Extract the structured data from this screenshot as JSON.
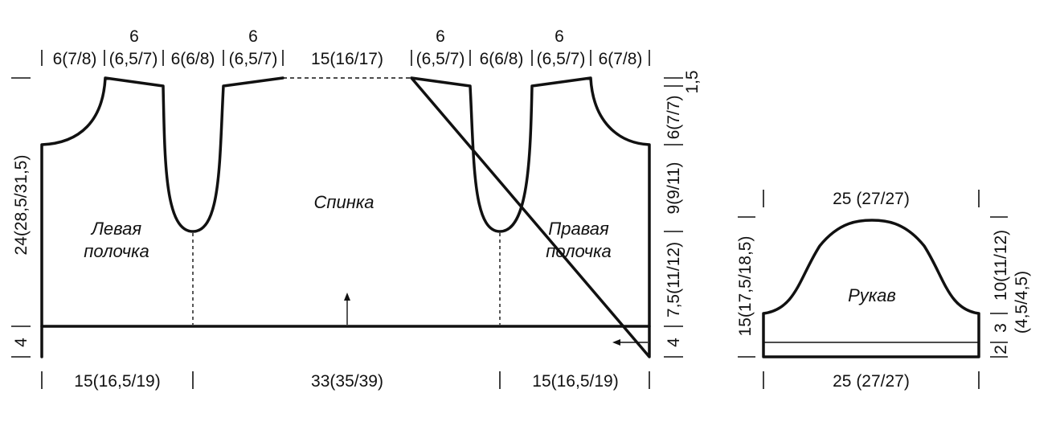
{
  "pieces": {
    "left_front": "Левая\nполочка",
    "back": "Спинка",
    "right_front": "Правая\nполочка",
    "sleeve": "Рукав"
  },
  "top_measures": {
    "left_neck_width": "6",
    "left_shoulder_width": "6",
    "right_neck_width": "6",
    "right_shoulder_width": "6",
    "seg1": "6(7/8)",
    "seg2": "(6,5/7)",
    "seg3": "6(6/8)",
    "seg4": "(6,5/7)",
    "seg5": "15(16/17)",
    "seg6": "(6,5/7)",
    "seg7": "6(6/8)",
    "seg8": "(6,5/7)",
    "seg9": "6(7/8)"
  },
  "bottom_measures": {
    "left": "15(16,5/19)",
    "center": "33(35/39)",
    "right": "15(16,5/19)"
  },
  "left_side": {
    "body_height": "24(28,5/31,5)",
    "band": "4"
  },
  "right_side": {
    "shoulder_slope": "1,5",
    "armhole_top": "6(7/7)",
    "armhole_mid": "9(9/11)",
    "lower": "7,5(11/12)",
    "band": "4"
  },
  "sleeve": {
    "top_width": "25 (27/27)",
    "bottom_width": "25 (27/27)",
    "left_height": "15(17,5/18,5)",
    "cap_height": "10(11/12)",
    "side_segment": "3",
    "cuff_segment": "2",
    "side_alt": "(4,5/4,5)"
  }
}
